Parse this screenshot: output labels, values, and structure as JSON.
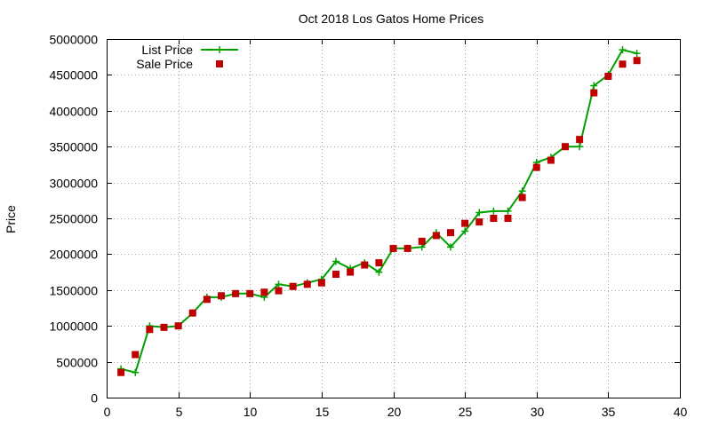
{
  "chart_data": {
    "type": "line",
    "title": "Oct 2018 Los Gatos Home Prices",
    "xlabel": "",
    "ylabel": "Price",
    "xlim": [
      0,
      40
    ],
    "ylim": [
      0,
      5000000
    ],
    "xticks": [
      "0",
      "5",
      "10",
      "15",
      "20",
      "25",
      "30",
      "35",
      "40"
    ],
    "yticks": [
      "0",
      "500000",
      "1000000",
      "1500000",
      "2000000",
      "2500000",
      "3000000",
      "3500000",
      "4000000",
      "4500000",
      "5000000"
    ],
    "grid": true,
    "legend_position": "top-left",
    "x": [
      1,
      2,
      3,
      4,
      5,
      6,
      7,
      8,
      9,
      10,
      11,
      12,
      13,
      14,
      15,
      16,
      17,
      18,
      19,
      20,
      21,
      22,
      23,
      24,
      25,
      26,
      27,
      28,
      29,
      30,
      31,
      32,
      33,
      34,
      35,
      36,
      37
    ],
    "series": [
      {
        "name": "List Price",
        "style": "line-points",
        "color": "#00a000",
        "values": [
          400000,
          350000,
          1000000,
          980000,
          1000000,
          1180000,
          1400000,
          1400000,
          1450000,
          1450000,
          1400000,
          1580000,
          1550000,
          1600000,
          1650000,
          1900000,
          1800000,
          1880000,
          1750000,
          2080000,
          2080000,
          2100000,
          2300000,
          2100000,
          2320000,
          2580000,
          2600000,
          2600000,
          2880000,
          3280000,
          3350000,
          3500000,
          3500000,
          4350000,
          4500000,
          4850000,
          4800000
        ]
      },
      {
        "name": "Sale Price",
        "style": "points",
        "color": "#c00000",
        "values": [
          350000,
          600000,
          950000,
          980000,
          1000000,
          1180000,
          1370000,
          1420000,
          1450000,
          1450000,
          1470000,
          1490000,
          1550000,
          1580000,
          1600000,
          1720000,
          1750000,
          1850000,
          1880000,
          2080000,
          2080000,
          2180000,
          2260000,
          2300000,
          2430000,
          2450000,
          2500000,
          2500000,
          2790000,
          3210000,
          3310000,
          3500000,
          3600000,
          4250000,
          4480000,
          4650000,
          4700000
        ]
      }
    ]
  }
}
